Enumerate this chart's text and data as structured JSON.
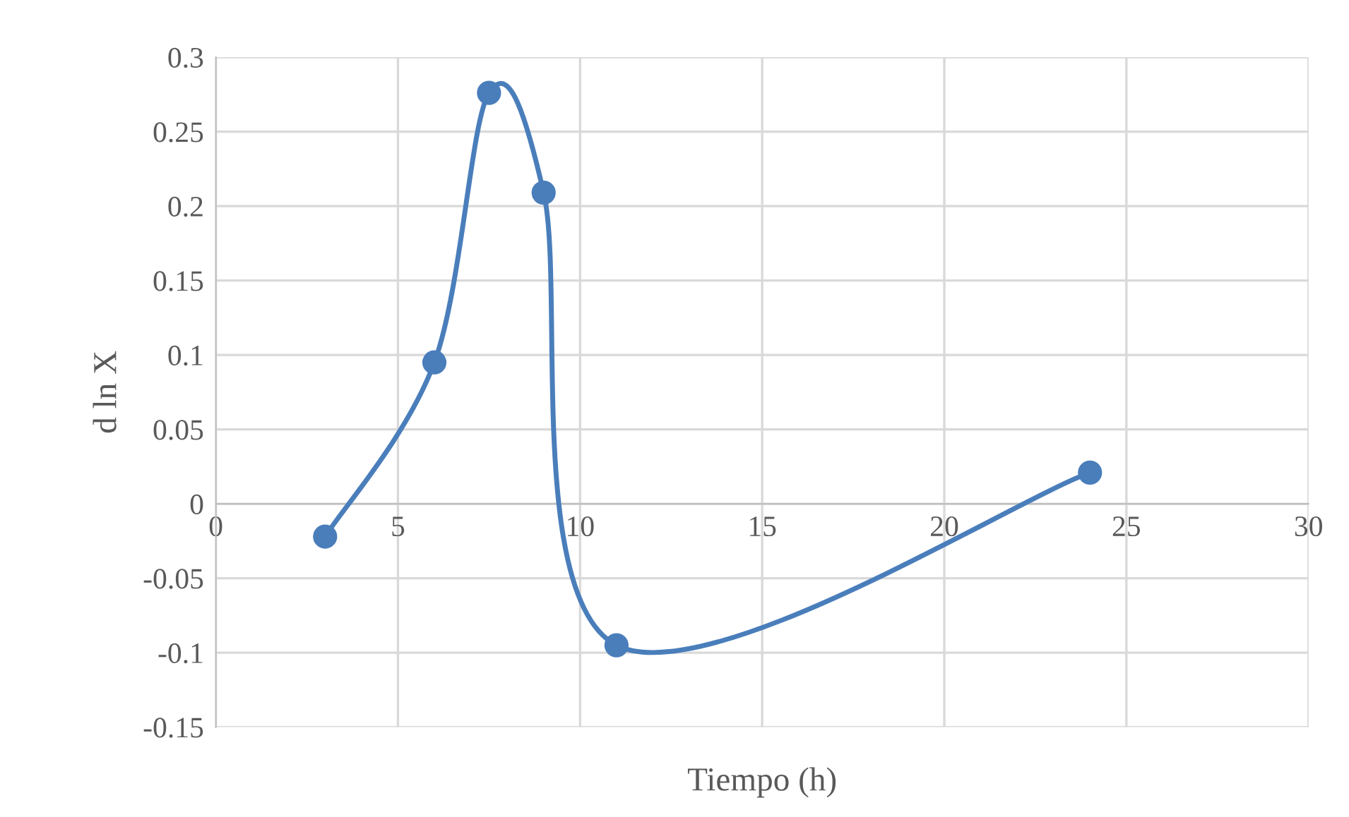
{
  "chart_data": {
    "type": "line",
    "xlabel": "Tiempo (h)",
    "ylabel": "d ln X",
    "series": [
      {
        "color": "#4a7ebb",
        "x": [
          3,
          6,
          7.5,
          9,
          11,
          24
        ],
        "values": [
          -0.022,
          0.095,
          0.276,
          0.209,
          -0.095,
          0.021
        ]
      }
    ],
    "xlim": [
      0,
      30
    ],
    "xticks": [
      0,
      5,
      10,
      15,
      20,
      25,
      30
    ],
    "ylim": [
      -0.15,
      0.3
    ],
    "yticks": [
      -0.15,
      -0.1,
      -0.05,
      0,
      0.05,
      0.1,
      0.15,
      0.2,
      0.25,
      0.3
    ],
    "grid": true,
    "marker": "circle",
    "line_style": "solid"
  }
}
